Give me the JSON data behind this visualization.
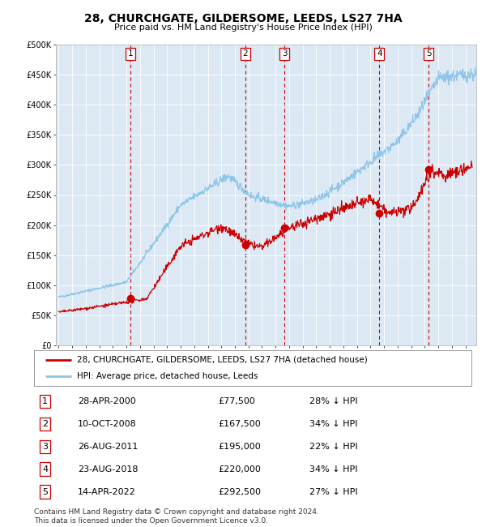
{
  "title": "28, CHURCHGATE, GILDERSOME, LEEDS, LS27 7HA",
  "subtitle": "Price paid vs. HM Land Registry's House Price Index (HPI)",
  "background_color": "#dce9f5",
  "plot_bg_color": "#dce9f5",
  "hpi_color": "#8ec4e8",
  "price_color": "#cc0000",
  "marker_color": "#cc0000",
  "purchases": [
    {
      "label": "1",
      "date_num": 2000.32,
      "price": 77500,
      "date_str": "28-APR-2000"
    },
    {
      "label": "2",
      "date_num": 2008.78,
      "price": 167500,
      "date_str": "10-OCT-2008"
    },
    {
      "label": "3",
      "date_num": 2011.65,
      "price": 195000,
      "date_str": "26-AUG-2011"
    },
    {
      "label": "4",
      "date_num": 2018.65,
      "price": 220000,
      "date_str": "23-AUG-2018"
    },
    {
      "label": "5",
      "date_num": 2022.28,
      "price": 292500,
      "date_str": "14-APR-2022"
    }
  ],
  "ylim": [
    0,
    500000
  ],
  "xlim": [
    1994.8,
    2025.8
  ],
  "yticks": [
    0,
    50000,
    100000,
    150000,
    200000,
    250000,
    300000,
    350000,
    400000,
    450000,
    500000
  ],
  "ytick_labels": [
    "£0",
    "£50K",
    "£100K",
    "£150K",
    "£200K",
    "£250K",
    "£300K",
    "£350K",
    "£400K",
    "£450K",
    "£500K"
  ],
  "legend_line1": "28, CHURCHGATE, GILDERSOME, LEEDS, LS27 7HA (detached house)",
  "legend_line2": "HPI: Average price, detached house, Leeds",
  "footnote": "Contains HM Land Registry data © Crown copyright and database right 2024.\nThis data is licensed under the Open Government Licence v3.0.",
  "table_rows": [
    [
      "1",
      "28-APR-2000",
      "£77,500",
      "28% ↓ HPI"
    ],
    [
      "2",
      "10-OCT-2008",
      "£167,500",
      "34% ↓ HPI"
    ],
    [
      "3",
      "26-AUG-2011",
      "£195,000",
      "22% ↓ HPI"
    ],
    [
      "4",
      "23-AUG-2018",
      "£220,000",
      "34% ↓ HPI"
    ],
    [
      "5",
      "14-APR-2022",
      "£292,500",
      "27% ↓ HPI"
    ]
  ]
}
